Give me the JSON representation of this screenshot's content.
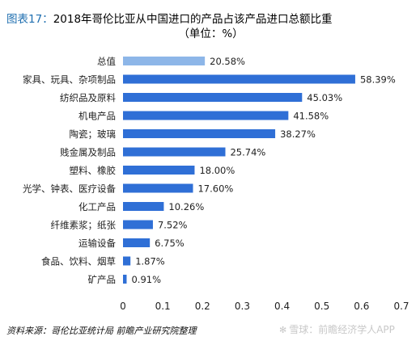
{
  "header": {
    "title_prefix": "图表17：",
    "title_main": "2018年哥伦比亚从中国进口的产品占该产品进口总额比重",
    "title_unit": "（单位：%）"
  },
  "chart_data": {
    "type": "bar",
    "orientation": "horizontal",
    "categories": [
      "总值",
      "家具、玩具、杂项制品",
      "纺织品及原料",
      "机电产品",
      "陶瓷；玻璃",
      "贱金属及制品",
      "塑料、橡胶",
      "光学、钟表、医疗设备",
      "化工产品",
      "纤维素浆；纸张",
      "运输设备",
      "食品、饮料、烟草",
      "矿产品"
    ],
    "values": [
      0.2058,
      0.5839,
      0.4503,
      0.4158,
      0.3827,
      0.2574,
      0.18,
      0.176,
      0.1026,
      0.0752,
      0.0675,
      0.0187,
      0.0091
    ],
    "value_labels": [
      "20.58%",
      "58.39%",
      "45.03%",
      "41.58%",
      "38.27%",
      "25.74%",
      "18.00%",
      "17.60%",
      "10.26%",
      "7.52%",
      "6.75%",
      "1.87%",
      "0.91%"
    ],
    "x_ticks": [
      "0",
      "0.1",
      "0.2",
      "0.3",
      "0.4",
      "0.5",
      "0.6",
      "0.7"
    ],
    "xlim": [
      0,
      0.7
    ],
    "grid": false,
    "colors": {
      "highlight": "#8db6e8",
      "bar": "#2f6fd6"
    }
  },
  "footer": {
    "source": "资料来源：哥伦比亚统计局 前瞻产业研究院整理",
    "watermark": "雪球：前瞻经济学人APP",
    "watermark_icon": "snowball-icon"
  }
}
